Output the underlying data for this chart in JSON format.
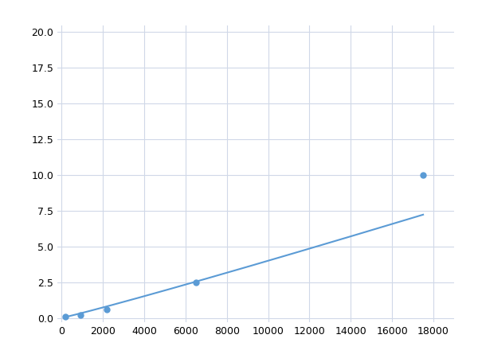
{
  "x_points": [
    200,
    900,
    2200,
    6500,
    17500
  ],
  "y_points": [
    0.1,
    0.2,
    0.6,
    2.5,
    10.0
  ],
  "line_color": "#5b9bd5",
  "marker_color": "#5b9bd5",
  "marker_size": 5,
  "line_width": 1.5,
  "xlim": [
    -200,
    19000
  ],
  "ylim": [
    -0.3,
    20.5
  ],
  "xticks": [
    0,
    2000,
    4000,
    6000,
    8000,
    10000,
    12000,
    14000,
    16000,
    18000
  ],
  "yticks": [
    0.0,
    2.5,
    5.0,
    7.5,
    10.0,
    12.5,
    15.0,
    17.5,
    20.0
  ],
  "grid_color": "#d0d8e8",
  "background_color": "#ffffff",
  "tick_fontsize": 9,
  "power_law_a": 1.7e-05,
  "power_law_b": 1.65
}
